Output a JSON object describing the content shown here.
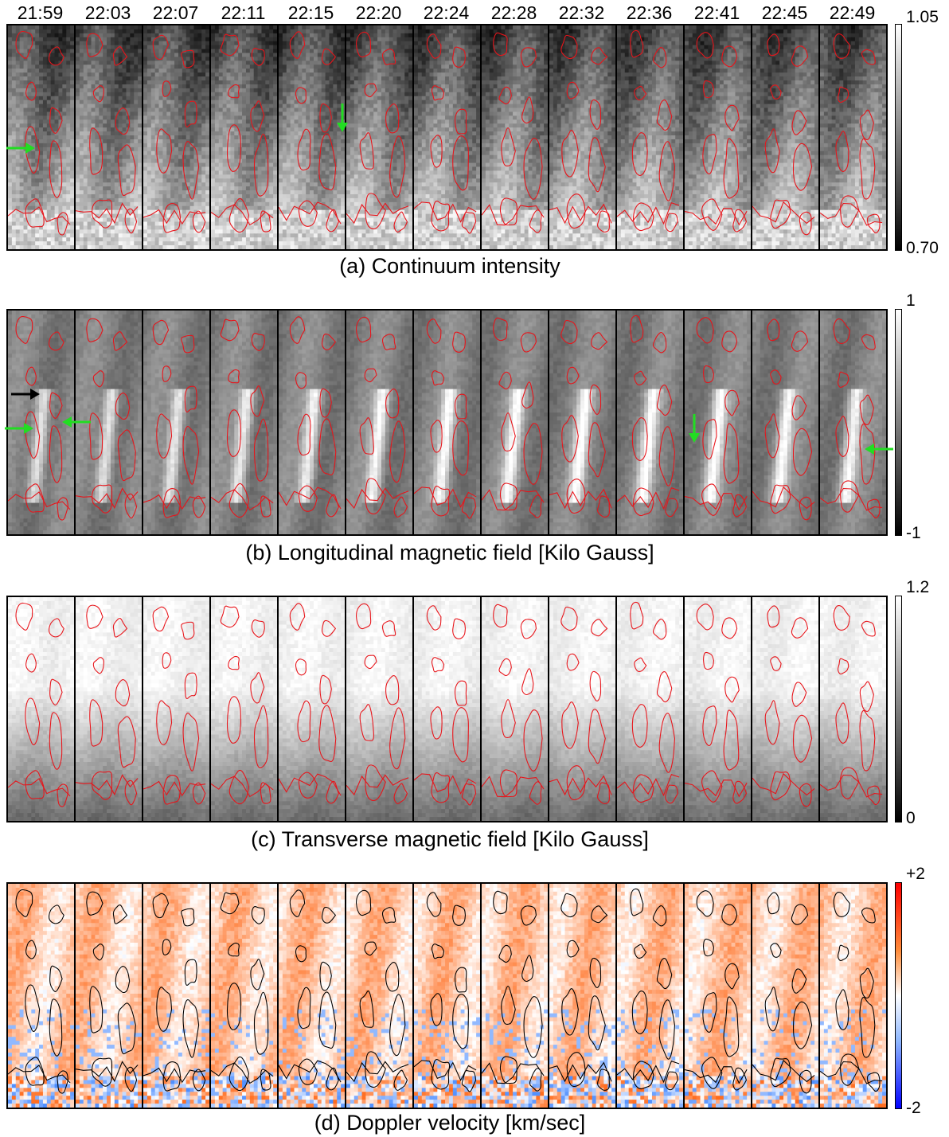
{
  "timestamps": [
    "21:59",
    "22:03",
    "22:07",
    "22:11",
    "22:15",
    "22:20",
    "22:24",
    "22:28",
    "22:32",
    "22:36",
    "22:41",
    "22:45",
    "22:49"
  ],
  "panels": [
    {
      "id": "a",
      "caption": "(a) Continuum intensity",
      "cbar_max": "1.05",
      "cbar_min": "0.70",
      "contour_color": "#e8141a",
      "colormap": "gray"
    },
    {
      "id": "b",
      "caption": "(b) Longitudinal magnetic field [Kilo Gauss]",
      "cbar_max": "1",
      "cbar_min": "-1",
      "contour_color": "#e8141a",
      "colormap": "gray"
    },
    {
      "id": "c",
      "caption": "(c) Transverse magnetic field [Kilo Gauss]",
      "cbar_max": "1.2",
      "cbar_min": "0",
      "contour_color": "#e8141a",
      "colormap": "gray"
    },
    {
      "id": "d",
      "caption": "(d) Doppler velocity [km/sec]",
      "cbar_max": "+2",
      "cbar_min": "-2",
      "contour_color": "#000000",
      "colormap": "red-white-blue"
    }
  ],
  "arrow_colors": {
    "green": "#22dd22",
    "black": "#000000"
  }
}
